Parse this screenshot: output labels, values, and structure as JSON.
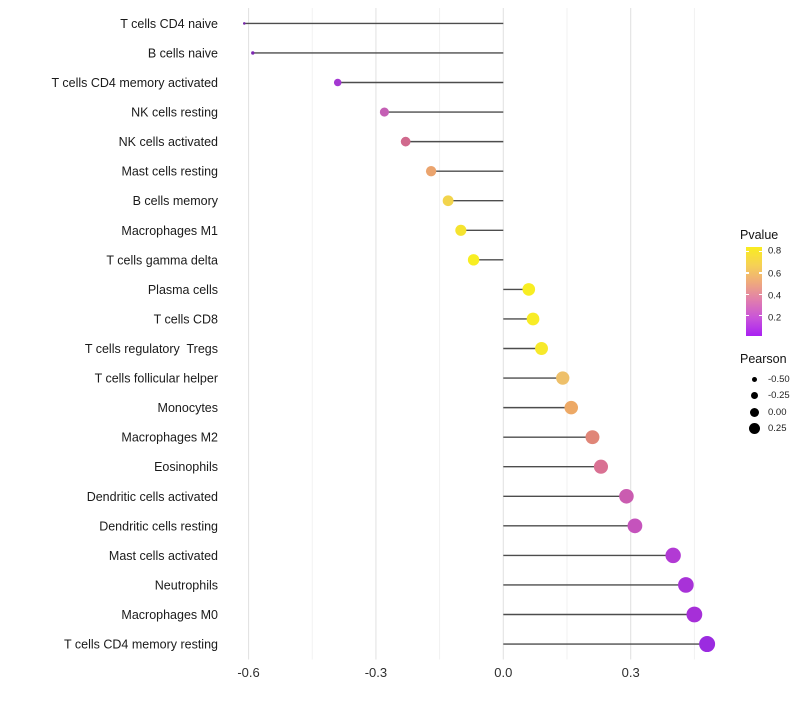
{
  "chart_data": {
    "type": "lollipop",
    "title": "",
    "xlabel": "",
    "ylabel": "",
    "xlim": [
      -0.665,
      0.535
    ],
    "x_major_ticks": [
      -0.6,
      -0.3,
      0.0,
      0.3
    ],
    "x_major_tick_labels": [
      "-0.6",
      "-0.3",
      "0.0",
      "0.3"
    ],
    "x_minor_ticks": [
      -0.45,
      -0.15,
      0.15,
      0.45
    ],
    "grid": "vertical major + minor gridlines, light gray, no axis lines",
    "legend_position": "right",
    "points": [
      {
        "label": "T cells CD4 naive",
        "pearson": -0.61,
        "color": "#782ba8"
      },
      {
        "label": "B cells naive",
        "pearson": -0.59,
        "color": "#7d27b2"
      },
      {
        "label": "T cells CD4 memory activated",
        "pearson": -0.39,
        "color": "#a438d2"
      },
      {
        "label": "NK cells resting",
        "pearson": -0.28,
        "color": "#c45fb4"
      },
      {
        "label": "NK cells activated",
        "pearson": -0.23,
        "color": "#d0698d"
      },
      {
        "label": "Mast cells resting",
        "pearson": -0.17,
        "color": "#eba46e"
      },
      {
        "label": "B cells memory",
        "pearson": -0.13,
        "color": "#f2d44c"
      },
      {
        "label": "Macrophages M1",
        "pearson": -0.1,
        "color": "#f5e32f"
      },
      {
        "label": "T cells gamma delta",
        "pearson": -0.07,
        "color": "#f8ee22"
      },
      {
        "label": "Plasma cells",
        "pearson": 0.06,
        "color": "#f8ee22"
      },
      {
        "label": "T cells CD8",
        "pearson": 0.07,
        "color": "#f8ec26"
      },
      {
        "label": "T cells regulatory  Tregs",
        "pearson": 0.09,
        "color": "#f7e92b"
      },
      {
        "label": "T cells follicular helper",
        "pearson": 0.14,
        "color": "#eec06a"
      },
      {
        "label": "Monocytes",
        "pearson": 0.16,
        "color": "#eda966"
      },
      {
        "label": "Macrophages M2",
        "pearson": 0.21,
        "color": "#e08678"
      },
      {
        "label": "Eosinophils",
        "pearson": 0.23,
        "color": "#d97193"
      },
      {
        "label": "Dendritic cells activated",
        "pearson": 0.29,
        "color": "#ca5cb0"
      },
      {
        "label": "Dendritic cells resting",
        "pearson": 0.31,
        "color": "#c553bc"
      },
      {
        "label": "Mast cells activated",
        "pearson": 0.4,
        "color": "#b23ad4"
      },
      {
        "label": "Neutrophils",
        "pearson": 0.43,
        "color": "#a832d8"
      },
      {
        "label": "Macrophages M0",
        "pearson": 0.45,
        "color": "#a62fd8"
      },
      {
        "label": "T cells CD4 memory resting",
        "pearson": 0.48,
        "color": "#9b2be0"
      }
    ],
    "pvalue_legend": {
      "title": "Pvalue",
      "tick_labels": [
        "0.8",
        "0.6",
        "0.4",
        "0.2"
      ],
      "tick_positions_pct": [
        4.8,
        29.2,
        53.1,
        77.2
      ],
      "gradient_stops_top_to_bottom": [
        "#f9ec20",
        "#f6d254",
        "#efa97d",
        "#e07dae",
        "#c853da",
        "#a921f2"
      ]
    },
    "size_legend": {
      "title": "Pearson",
      "entries": [
        {
          "label": "-0.50",
          "radius": 2.6
        },
        {
          "label": "-0.25",
          "radius": 3.7
        },
        {
          "label": "0.00",
          "radius": 4.7
        },
        {
          "label": "0.25",
          "radius": 5.7
        }
      ]
    },
    "colors": {
      "stem": "#4d4d4d",
      "grid_major": "#e3e3e3",
      "grid_minor": "#f0f0f0",
      "background": "#ffffff"
    }
  }
}
